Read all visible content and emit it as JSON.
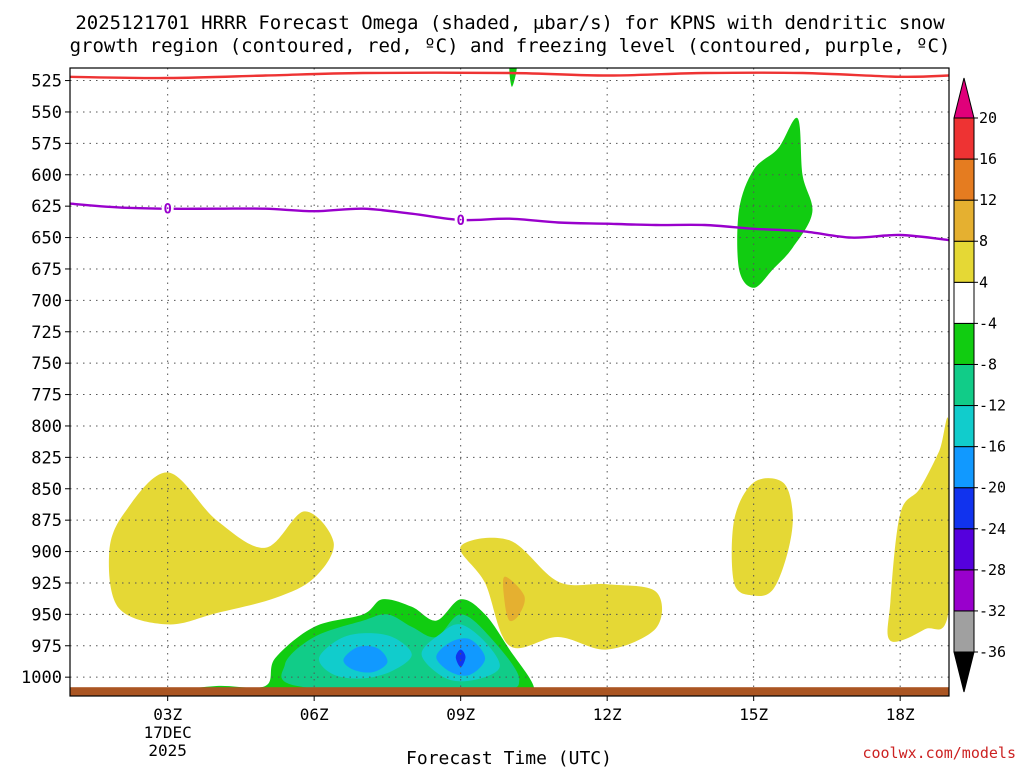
{
  "chart_data": {
    "type": "heatmap",
    "title_line1": "2025121701 HRRR Forecast Omega (shaded, μbar/s) for KPNS with dendritic snow",
    "title_line2": "growth region (contoured, red, ºC) and freezing level (contoured, purple, ºC)",
    "xlabel": "Forecast Time (UTC)",
    "credit": "coolwx.com/models",
    "x_range": [
      1,
      19
    ],
    "y_range": [
      515,
      1015
    ],
    "y_ticks": [
      525,
      550,
      575,
      600,
      625,
      650,
      675,
      700,
      725,
      750,
      775,
      800,
      825,
      850,
      875,
      900,
      925,
      950,
      975,
      1000
    ],
    "x_ticks": [
      {
        "hour": 3,
        "label": "03Z",
        "date": "17DEC",
        "year": "2025"
      },
      {
        "hour": 6,
        "label": "06Z"
      },
      {
        "hour": 9,
        "label": "09Z"
      },
      {
        "hour": 12,
        "label": "12Z"
      },
      {
        "hour": 15,
        "label": "15Z"
      },
      {
        "hour": 18,
        "label": "18Z"
      }
    ],
    "colorbar": {
      "colors": [
        "#000000",
        "#a0a0a0",
        "#9900cc",
        "#5500dd",
        "#1133ee",
        "#1199ff",
        "#11cccc",
        "#11cc88",
        "#11cc11",
        "#ffffff",
        "#e5d835",
        "#e5b030",
        "#e57c20",
        "#ee3333",
        "#e0007a"
      ],
      "labels": [
        "-36",
        "-32",
        "-28",
        "-24",
        "-20",
        "-16",
        "-12",
        "-8",
        "-4",
        "4",
        "8",
        "12",
        "16",
        "20"
      ]
    },
    "freezing_level": {
      "color": "#9900cc",
      "label": "0",
      "label_at_hours": [
        3,
        9
      ],
      "points": [
        [
          1,
          623
        ],
        [
          2,
          626
        ],
        [
          3,
          627
        ],
        [
          4,
          627
        ],
        [
          5,
          627
        ],
        [
          6,
          629
        ],
        [
          7,
          627
        ],
        [
          8,
          631
        ],
        [
          9,
          636
        ],
        [
          10,
          635
        ],
        [
          11,
          638
        ],
        [
          12,
          639
        ],
        [
          13,
          640
        ],
        [
          14,
          640
        ],
        [
          15,
          643
        ],
        [
          16,
          645
        ],
        [
          17,
          650
        ],
        [
          18,
          648
        ],
        [
          19,
          652
        ]
      ]
    },
    "dendritic_contour": {
      "color": "#ee3333",
      "points": [
        [
          1,
          522
        ],
        [
          3,
          523
        ],
        [
          5,
          521
        ],
        [
          7,
          519
        ],
        [
          10,
          519
        ],
        [
          12,
          521
        ],
        [
          14,
          519
        ],
        [
          16,
          519
        ],
        [
          18,
          522
        ],
        [
          19,
          521
        ]
      ]
    },
    "surface_band": {
      "color": "#aa5522",
      "from_hour": 1,
      "to_hour": 19
    },
    "shaded_regions": [
      {
        "value": "4",
        "color": "#e5d835",
        "points": [
          [
            1.8,
            902
          ],
          [
            2.1,
            870
          ],
          [
            3.0,
            837
          ],
          [
            4.0,
            875
          ],
          [
            5.0,
            897
          ],
          [
            5.8,
            868
          ],
          [
            6.4,
            893
          ],
          [
            6.0,
            921
          ],
          [
            5.2,
            937
          ],
          [
            4.0,
            949
          ],
          [
            3.0,
            958
          ],
          [
            2.0,
            945
          ]
        ]
      },
      {
        "value": "4",
        "color": "#e5d835",
        "points": [
          [
            9.0,
            896
          ],
          [
            10.0,
            891
          ],
          [
            11.0,
            924
          ],
          [
            12.0,
            926
          ],
          [
            13.0,
            932
          ],
          [
            13.0,
            961
          ],
          [
            12.0,
            978
          ],
          [
            11.0,
            968
          ],
          [
            10.0,
            975
          ],
          [
            9.5,
            925
          ]
        ]
      },
      {
        "value": "8",
        "color": "#e5b030",
        "points": [
          [
            9.9,
            920
          ],
          [
            10.3,
            935
          ],
          [
            10.2,
            950
          ],
          [
            10.0,
            955
          ],
          [
            9.9,
            940
          ]
        ]
      },
      {
        "value": "4",
        "color": "#e5d835",
        "points": [
          [
            14.6,
            875
          ],
          [
            15.0,
            845
          ],
          [
            15.6,
            845
          ],
          [
            15.8,
            870
          ],
          [
            15.7,
            900
          ],
          [
            15.4,
            930
          ],
          [
            15.0,
            935
          ],
          [
            14.6,
            925
          ]
        ]
      },
      {
        "value": "4",
        "color": "#e5d835",
        "points": [
          [
            17.8,
            940
          ],
          [
            18.0,
            870
          ],
          [
            18.4,
            850
          ],
          [
            18.8,
            820
          ],
          [
            19.0,
            800
          ],
          [
            19.0,
            945
          ],
          [
            18.5,
            962
          ],
          [
            17.8,
            971
          ]
        ]
      },
      {
        "value": "-4",
        "color": "#11cc11",
        "points": [
          [
            14.7,
            628
          ],
          [
            15.0,
            596
          ],
          [
            15.5,
            579
          ],
          [
            15.9,
            555
          ],
          [
            16.0,
            600
          ],
          [
            16.2,
            630
          ],
          [
            15.8,
            658
          ],
          [
            15.4,
            675
          ],
          [
            15.0,
            690
          ],
          [
            14.7,
            675
          ]
        ]
      },
      {
        "value": "-4",
        "color": "#11cc11",
        "points": [
          [
            10.0,
            514
          ],
          [
            10.15,
            514
          ],
          [
            10.05,
            530
          ]
        ]
      },
      {
        "value": "-4",
        "color": "#11cc11",
        "points": [
          [
            3.0,
            1012
          ],
          [
            4.0,
            1007
          ],
          [
            5.0,
            1007
          ],
          [
            5.2,
            985
          ],
          [
            6.0,
            960
          ],
          [
            7.0,
            950
          ],
          [
            7.4,
            938
          ],
          [
            8.0,
            944
          ],
          [
            8.5,
            955
          ],
          [
            9.0,
            938
          ],
          [
            9.5,
            950
          ],
          [
            10.0,
            978
          ],
          [
            10.5,
            1008
          ],
          [
            10.2,
            1017
          ],
          [
            4.0,
            1017
          ],
          [
            3.0,
            1017
          ]
        ]
      },
      {
        "value": "-8",
        "color": "#11cc88",
        "points": [
          [
            5.4,
            990
          ],
          [
            6.0,
            968
          ],
          [
            7.0,
            955
          ],
          [
            7.5,
            950
          ],
          [
            8.0,
            960
          ],
          [
            8.5,
            968
          ],
          [
            9.0,
            950
          ],
          [
            9.6,
            968
          ],
          [
            10.2,
            1002
          ],
          [
            9.5,
            1010
          ],
          [
            5.8,
            1008
          ]
        ]
      },
      {
        "value": "-12",
        "color": "#11cccc",
        "points": [
          [
            6.1,
            985
          ],
          [
            6.5,
            970
          ],
          [
            7.0,
            965
          ],
          [
            7.6,
            968
          ],
          [
            8.0,
            982
          ],
          [
            7.6,
            995
          ],
          [
            7.0,
            1001
          ],
          [
            6.4,
            998
          ]
        ]
      },
      {
        "value": "-12",
        "color": "#11cccc",
        "points": [
          [
            8.2,
            982
          ],
          [
            8.6,
            965
          ],
          [
            9.0,
            958
          ],
          [
            9.5,
            972
          ],
          [
            9.8,
            992
          ],
          [
            9.3,
            1002
          ],
          [
            8.7,
            1001
          ]
        ]
      },
      {
        "value": "-16",
        "color": "#1199ff",
        "points": [
          [
            6.6,
            986
          ],
          [
            6.9,
            976
          ],
          [
            7.3,
            977
          ],
          [
            7.5,
            988
          ],
          [
            7.2,
            996
          ],
          [
            6.8,
            994
          ]
        ]
      },
      {
        "value": "-16",
        "color": "#1199ff",
        "points": [
          [
            8.5,
            984
          ],
          [
            8.8,
            972
          ],
          [
            9.2,
            970
          ],
          [
            9.5,
            985
          ],
          [
            9.2,
            998
          ],
          [
            8.8,
            996
          ]
        ]
      },
      {
        "value": "-20",
        "color": "#1133ee",
        "points": [
          [
            8.9,
            984
          ],
          [
            9.0,
            978
          ],
          [
            9.1,
            984
          ],
          [
            9.0,
            992
          ]
        ]
      }
    ]
  }
}
